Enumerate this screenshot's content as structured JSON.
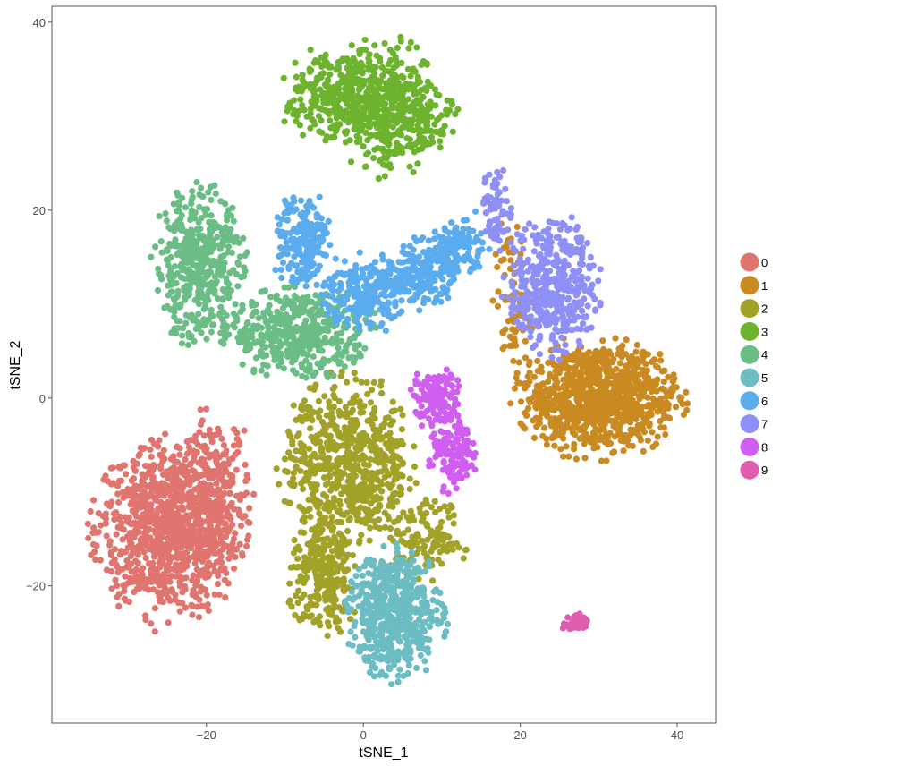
{
  "chart_data": {
    "type": "scatter",
    "title": "",
    "xlabel": "tSNE_1",
    "ylabel": "tSNE_2",
    "xlim": [
      -39.7,
      44.9
    ],
    "ylim": [
      -34.6,
      41.7
    ],
    "xticks": [
      -20,
      0,
      20,
      40
    ],
    "yticks": [
      -20,
      0,
      20,
      40
    ],
    "xtick_labels": [
      "−20",
      "0",
      "20",
      "40"
    ],
    "ytick_labels": [
      "−20",
      "0",
      "20",
      "40"
    ],
    "grid": false,
    "legend": {
      "placement": "right",
      "labels": [
        "0",
        "1",
        "2",
        "3",
        "4",
        "5",
        "6",
        "7",
        "8",
        "9"
      ]
    },
    "colors": [
      "#e0746e",
      "#c98a22",
      "#a2a128",
      "#6db32e",
      "#6abd84",
      "#6bbdc3",
      "#5aacef",
      "#8f8ff8",
      "#d05ef0",
      "#e05cae"
    ],
    "clusters": [
      {
        "id": "0",
        "components": [
          {
            "cx": -25,
            "cy": -14,
            "sx": 4.5,
            "sy": 4.5,
            "n": 900
          },
          {
            "cx": -19,
            "cy": -10,
            "sx": 2.5,
            "sy": 4,
            "n": 250
          }
        ]
      },
      {
        "id": "1",
        "components": [
          {
            "cx": 30,
            "cy": 0,
            "sx": 5,
            "sy": 3,
            "n": 900
          },
          {
            "cx": 19,
            "cy": 10,
            "sx": 1.2,
            "sy": 4,
            "n": 80
          }
        ]
      },
      {
        "id": "2",
        "components": [
          {
            "cx": -2,
            "cy": -7,
            "sx": 4,
            "sy": 4.5,
            "n": 650
          },
          {
            "cx": -5,
            "cy": -19,
            "sx": 2.2,
            "sy": 3,
            "n": 250
          },
          {
            "cx": 8,
            "cy": -15,
            "sx": 2.5,
            "sy": 2,
            "n": 120
          }
        ]
      },
      {
        "id": "3",
        "components": [
          {
            "cx": -3,
            "cy": 32,
            "sx": 3.5,
            "sy": 2.5,
            "n": 300
          },
          {
            "cx": 3,
            "cy": 31,
            "sx": 3,
            "sy": 3.5,
            "n": 300
          },
          {
            "cx": 7,
            "cy": 30,
            "sx": 2.5,
            "sy": 2,
            "n": 120
          }
        ]
      },
      {
        "id": "4",
        "components": [
          {
            "cx": -21,
            "cy": 14,
            "sx": 2.8,
            "sy": 4,
            "n": 450
          },
          {
            "cx": -8,
            "cy": 7,
            "sx": 4.5,
            "sy": 2.3,
            "n": 450
          }
        ]
      },
      {
        "id": "5",
        "components": [
          {
            "cx": 4,
            "cy": -23,
            "sx": 3,
            "sy": 3.3,
            "n": 550
          }
        ]
      },
      {
        "id": "6",
        "components": [
          {
            "cx": -8,
            "cy": 17,
            "sx": 1.8,
            "sy": 2.5,
            "n": 180
          },
          {
            "cx": 0,
            "cy": 11,
            "sx": 2.5,
            "sy": 2,
            "n": 200
          },
          {
            "cx": 7,
            "cy": 13,
            "sx": 2.5,
            "sy": 1.8,
            "n": 200
          },
          {
            "cx": 12,
            "cy": 16,
            "sx": 2,
            "sy": 1.5,
            "n": 120
          }
        ]
      },
      {
        "id": "7",
        "components": [
          {
            "cx": 24,
            "cy": 12,
            "sx": 2.8,
            "sy": 3.5,
            "n": 400
          },
          {
            "cx": 17,
            "cy": 20,
            "sx": 1,
            "sy": 2,
            "n": 70
          }
        ]
      },
      {
        "id": "8",
        "components": [
          {
            "cx": 9.5,
            "cy": 0,
            "sx": 1.6,
            "sy": 1.6,
            "n": 120
          },
          {
            "cx": 11.5,
            "cy": -6,
            "sx": 1.5,
            "sy": 2,
            "n": 140
          }
        ]
      },
      {
        "id": "9",
        "components": [
          {
            "cx": 27,
            "cy": -24,
            "sx": 0.8,
            "sy": 0.5,
            "n": 40
          }
        ]
      }
    ]
  }
}
